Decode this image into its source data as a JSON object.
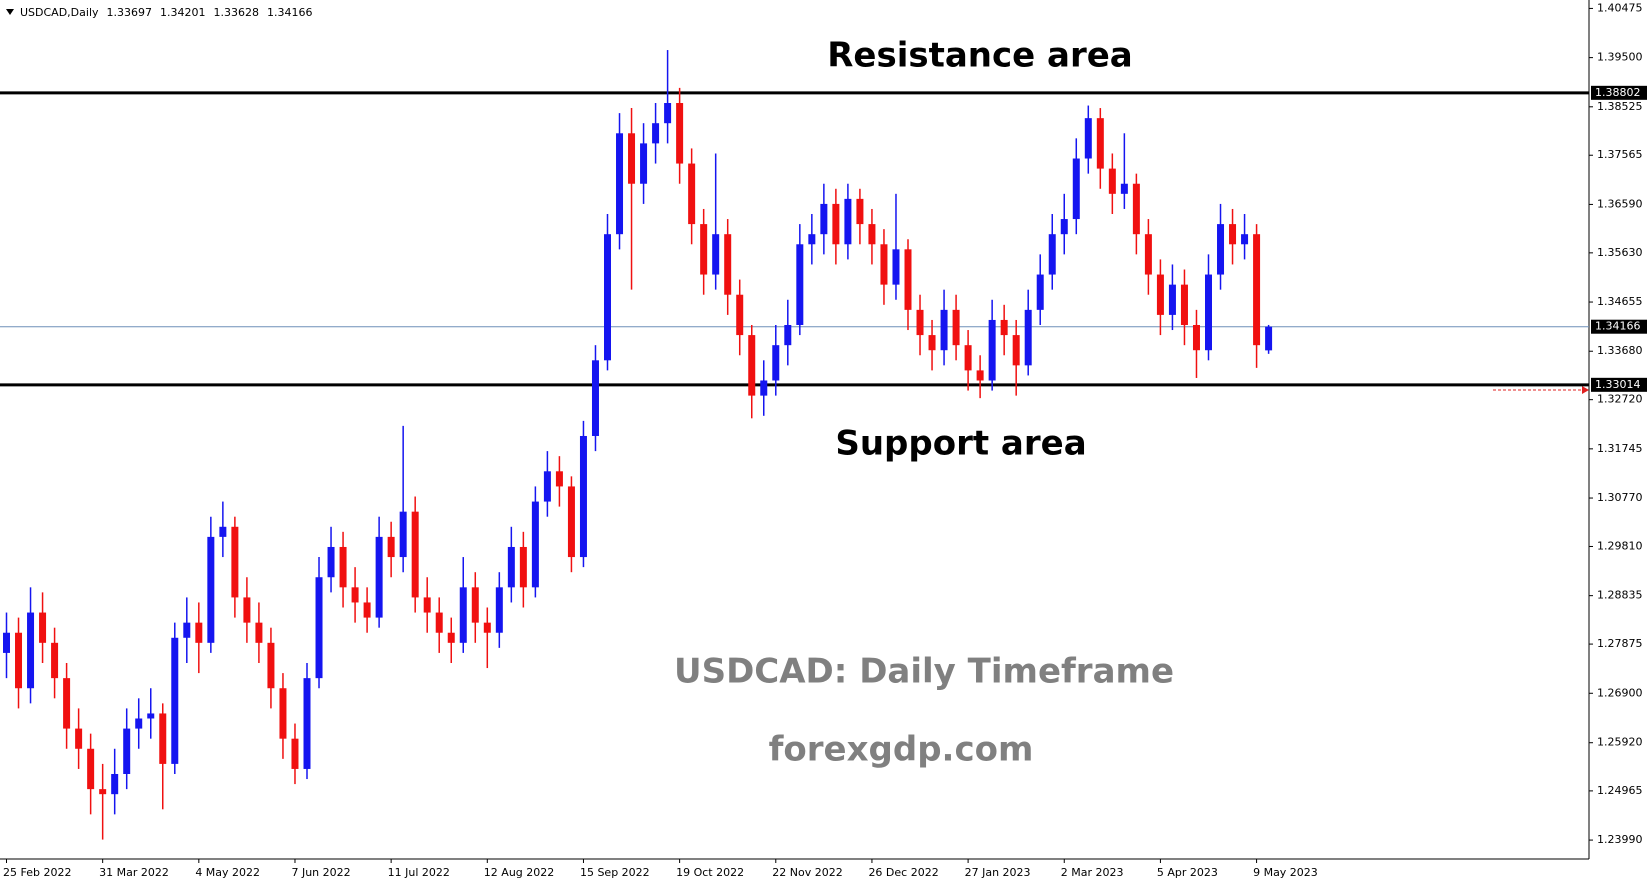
{
  "chart_data": {
    "type": "candlestick",
    "title": "USDCAD,Daily",
    "categories": [
      "25 Feb 2022",
      null,
      null,
      null,
      null,
      null,
      null,
      null,
      "31 Mar 2022",
      null,
      null,
      null,
      null,
      null,
      null,
      null,
      "4 May 2022",
      null,
      null,
      null,
      null,
      null,
      null,
      null,
      "7 Jun 2022",
      null,
      null,
      null,
      null,
      null,
      null,
      null,
      "11 Jul 2022",
      null,
      null,
      null,
      null,
      null,
      null,
      null,
      "12 Aug 2022",
      null,
      null,
      null,
      null,
      null,
      null,
      null,
      "15 Sep 2022",
      null,
      null,
      null,
      null,
      null,
      null,
      null,
      "19 Oct 2022",
      null,
      null,
      null,
      null,
      null,
      null,
      null,
      "22 Nov 2022",
      null,
      null,
      null,
      null,
      null,
      null,
      null,
      "26 Dec 2022",
      null,
      null,
      null,
      null,
      null,
      null,
      null,
      "27 Jan 2023",
      null,
      null,
      null,
      null,
      null,
      null,
      null,
      "2 Mar 2023",
      null,
      null,
      null,
      null,
      null,
      null,
      null,
      "5 Apr 2023",
      null,
      null,
      null,
      null,
      null,
      null,
      null,
      "9 May 2023",
      null
    ],
    "open": [
      1.277,
      1.281,
      1.27,
      1.285,
      1.279,
      1.272,
      1.262,
      1.258,
      1.25,
      1.249,
      1.253,
      1.262,
      1.264,
      1.265,
      1.255,
      1.28,
      1.283,
      1.279,
      1.3,
      1.302,
      1.288,
      1.283,
      1.279,
      1.27,
      1.26,
      1.254,
      1.272,
      1.292,
      1.298,
      1.29,
      1.287,
      1.284,
      1.3,
      1.296,
      1.305,
      1.288,
      1.285,
      1.281,
      1.279,
      1.29,
      1.283,
      1.281,
      1.29,
      1.298,
      1.29,
      1.307,
      1.313,
      1.31,
      1.296,
      1.32,
      1.335,
      1.36,
      1.38,
      1.37,
      1.378,
      1.382,
      1.386,
      1.374,
      1.362,
      1.352,
      1.36,
      1.348,
      1.34,
      1.328,
      1.331,
      1.338,
      1.342,
      1.358,
      1.36,
      1.366,
      1.358,
      1.367,
      1.362,
      1.358,
      1.35,
      1.357,
      1.345,
      1.34,
      1.337,
      1.345,
      1.338,
      1.333,
      1.331,
      1.343,
      1.34,
      1.334,
      1.345,
      1.352,
      1.36,
      1.363,
      1.375,
      1.383,
      1.373,
      1.368,
      1.37,
      1.36,
      1.352,
      1.344,
      1.35,
      1.342,
      1.337,
      1.352,
      1.362,
      1.358,
      1.36,
      1.33697
    ],
    "high": [
      1.285,
      1.284,
      1.29,
      1.289,
      1.282,
      1.275,
      1.266,
      1.261,
      1.255,
      1.258,
      1.266,
      1.268,
      1.27,
      1.267,
      1.283,
      1.288,
      1.287,
      1.304,
      1.307,
      1.304,
      1.292,
      1.287,
      1.282,
      1.273,
      1.263,
      1.275,
      1.296,
      1.302,
      1.301,
      1.294,
      1.29,
      1.304,
      1.303,
      1.322,
      1.308,
      1.292,
      1.288,
      1.284,
      1.296,
      1.293,
      1.286,
      1.293,
      1.302,
      1.301,
      1.31,
      1.317,
      1.316,
      1.312,
      1.323,
      1.338,
      1.364,
      1.384,
      1.385,
      1.382,
      1.386,
      1.3965,
      1.389,
      1.377,
      1.365,
      1.376,
      1.363,
      1.351,
      1.342,
      1.335,
      1.342,
      1.347,
      1.362,
      1.364,
      1.37,
      1.369,
      1.37,
      1.369,
      1.365,
      1.361,
      1.368,
      1.359,
      1.348,
      1.343,
      1.349,
      1.348,
      1.341,
      1.336,
      1.347,
      1.346,
      1.343,
      1.349,
      1.356,
      1.364,
      1.368,
      1.379,
      1.3855,
      1.385,
      1.376,
      1.38,
      1.372,
      1.363,
      1.355,
      1.354,
      1.353,
      1.345,
      1.356,
      1.366,
      1.365,
      1.364,
      1.362,
      1.34201
    ],
    "low": [
      1.272,
      1.266,
      1.267,
      1.275,
      1.268,
      1.258,
      1.254,
      1.245,
      1.24,
      1.245,
      1.25,
      1.258,
      1.26,
      1.246,
      1.253,
      1.275,
      1.273,
      1.277,
      1.296,
      1.284,
      1.279,
      1.275,
      1.266,
      1.256,
      1.251,
      1.252,
      1.27,
      1.289,
      1.286,
      1.283,
      1.281,
      1.282,
      1.292,
      1.293,
      1.285,
      1.281,
      1.277,
      1.275,
      1.277,
      1.279,
      1.274,
      1.278,
      1.287,
      1.286,
      1.288,
      1.304,
      1.306,
      1.293,
      1.294,
      1.317,
      1.333,
      1.357,
      1.349,
      1.366,
      1.374,
      1.378,
      1.37,
      1.358,
      1.348,
      1.349,
      1.344,
      1.336,
      1.3235,
      1.324,
      1.328,
      1.334,
      1.34,
      1.354,
      1.356,
      1.354,
      1.355,
      1.358,
      1.354,
      1.346,
      1.347,
      1.341,
      1.336,
      1.333,
      1.334,
      1.335,
      1.329,
      1.3275,
      1.329,
      1.336,
      1.328,
      1.332,
      1.342,
      1.349,
      1.356,
      1.36,
      1.372,
      1.369,
      1.364,
      1.365,
      1.356,
      1.348,
      1.34,
      1.341,
      1.338,
      1.3315,
      1.335,
      1.349,
      1.354,
      1.355,
      1.3335,
      1.33628
    ],
    "close": [
      1.281,
      1.27,
      1.285,
      1.279,
      1.272,
      1.262,
      1.258,
      1.25,
      1.249,
      1.253,
      1.262,
      1.264,
      1.265,
      1.255,
      1.28,
      1.283,
      1.279,
      1.3,
      1.302,
      1.288,
      1.283,
      1.279,
      1.27,
      1.26,
      1.254,
      1.272,
      1.292,
      1.298,
      1.29,
      1.287,
      1.284,
      1.3,
      1.296,
      1.305,
      1.288,
      1.285,
      1.281,
      1.279,
      1.29,
      1.283,
      1.281,
      1.29,
      1.298,
      1.29,
      1.307,
      1.313,
      1.31,
      1.296,
      1.32,
      1.335,
      1.36,
      1.38,
      1.37,
      1.378,
      1.382,
      1.386,
      1.374,
      1.362,
      1.352,
      1.36,
      1.348,
      1.34,
      1.328,
      1.331,
      1.338,
      1.342,
      1.358,
      1.36,
      1.366,
      1.358,
      1.367,
      1.362,
      1.358,
      1.35,
      1.357,
      1.345,
      1.34,
      1.337,
      1.345,
      1.338,
      1.333,
      1.331,
      1.343,
      1.34,
      1.334,
      1.345,
      1.352,
      1.36,
      1.363,
      1.375,
      1.383,
      1.373,
      1.368,
      1.37,
      1.36,
      1.352,
      1.344,
      1.35,
      1.342,
      1.337,
      1.352,
      1.362,
      1.358,
      1.36,
      1.338,
      1.34166
    ],
    "colors": {
      "up": "#1515f0",
      "down": "#f01010",
      "level": "#000000",
      "price": "#6f8fb8"
    },
    "ylim": [
      1.23615,
      1.40642
    ],
    "yticks": [
      1.40475,
      {
        "value": 1.395,
        "label": "1.39500"
      },
      1.38525,
      1.37565,
      {
        "value": 1.3659,
        "label": "1.36590"
      },
      {
        "value": 1.3563,
        "label": "1.35630"
      },
      1.34655,
      {
        "value": 1.3368,
        "label": "1.33680"
      },
      {
        "value": 1.3272,
        "label": "1.32720"
      },
      1.31745,
      {
        "value": 1.3077,
        "label": "1.30770"
      },
      {
        "value": 1.2981,
        "label": "1.29810"
      },
      1.28835,
      1.27875,
      {
        "value": 1.269,
        "label": "1.26900"
      },
      {
        "value": 1.2592,
        "label": "1.25920"
      },
      1.24965,
      {
        "value": 1.2399,
        "label": "1.23990"
      }
    ],
    "hlines": [
      1.38802,
      1.33014
    ],
    "annotations": [
      "Resistance area",
      "Support area",
      "USDCAD: Daily Timeframe",
      "forexgdp.com"
    ]
  }
}
